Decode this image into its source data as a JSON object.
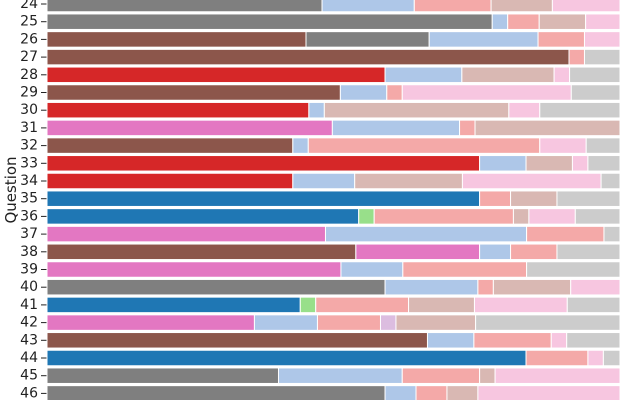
{
  "chart_data": {
    "type": "bar",
    "orientation": "horizontal",
    "stacked": true,
    "title": "",
    "xlabel": "",
    "ylabel": "Question",
    "xlim": [
      0,
      100
    ],
    "grid": false,
    "legend": "none",
    "categories": [
      "24",
      "25",
      "26",
      "27",
      "28",
      "29",
      "30",
      "31",
      "32",
      "33",
      "34",
      "35",
      "36",
      "37",
      "38",
      "39",
      "40",
      "41",
      "42",
      "43",
      "44",
      "45",
      "46"
    ],
    "rows": [
      {
        "q": "24",
        "segments": [
          {
            "color": "#7f7f7f",
            "value": 48.0
          },
          {
            "color": "#aec7e8",
            "value": 16.1
          },
          {
            "color": "#f4a9a8",
            "value": 13.4
          },
          {
            "color": "#d9b8b3",
            "value": 10.7
          },
          {
            "color": "#f7c6e0",
            "value": 11.8
          }
        ]
      },
      {
        "q": "25",
        "segments": [
          {
            "color": "#7f7f7f",
            "value": 77.7
          },
          {
            "color": "#aec7e8",
            "value": 2.7
          },
          {
            "color": "#f4a9a8",
            "value": 5.5
          },
          {
            "color": "#d9b8b3",
            "value": 8.1
          },
          {
            "color": "#f7c6e0",
            "value": 6.0
          }
        ]
      },
      {
        "q": "26",
        "segments": [
          {
            "color": "#8c564b",
            "value": 45.2
          },
          {
            "color": "#7f7f7f",
            "value": 21.5
          },
          {
            "color": "#aec7e8",
            "value": 19.0
          },
          {
            "color": "#f4a9a8",
            "value": 8.1
          },
          {
            "color": "#f7c6e0",
            "value": 6.2
          }
        ]
      },
      {
        "q": "27",
        "segments": [
          {
            "color": "#8c564b",
            "value": 91.1
          },
          {
            "color": "#f4a9a8",
            "value": 2.7
          },
          {
            "color": "#cccccc",
            "value": 6.2
          }
        ]
      },
      {
        "q": "28",
        "segments": [
          {
            "color": "#d62728",
            "value": 59.0
          },
          {
            "color": "#aec7e8",
            "value": 13.4
          },
          {
            "color": "#d9b8b3",
            "value": 16.1
          },
          {
            "color": "#f7c6e0",
            "value": 2.7
          },
          {
            "color": "#cccccc",
            "value": 8.8
          }
        ]
      },
      {
        "q": "29",
        "segments": [
          {
            "color": "#8c564b",
            "value": 51.2
          },
          {
            "color": "#aec7e8",
            "value": 8.1
          },
          {
            "color": "#f4a9a8",
            "value": 2.7
          },
          {
            "color": "#f7c6e0",
            "value": 29.5
          },
          {
            "color": "#cccccc",
            "value": 8.5
          }
        ]
      },
      {
        "q": "30",
        "segments": [
          {
            "color": "#d62728",
            "value": 45.7
          },
          {
            "color": "#aec7e8",
            "value": 2.7
          },
          {
            "color": "#d9b8b3",
            "value": 32.2
          },
          {
            "color": "#f7c6e0",
            "value": 5.4
          },
          {
            "color": "#cccccc",
            "value": 14.0
          }
        ]
      },
      {
        "q": "31",
        "segments": [
          {
            "color": "#e377c2",
            "value": 49.8
          },
          {
            "color": "#aec7e8",
            "value": 22.2
          },
          {
            "color": "#f4a9a8",
            "value": 2.7
          },
          {
            "color": "#d9b8b3",
            "value": 25.3
          }
        ]
      },
      {
        "q": "32",
        "segments": [
          {
            "color": "#8c564b",
            "value": 42.9
          },
          {
            "color": "#aec7e8",
            "value": 2.7
          },
          {
            "color": "#f4a9a8",
            "value": 40.4
          },
          {
            "color": "#f7c6e0",
            "value": 8.1
          },
          {
            "color": "#cccccc",
            "value": 5.9
          }
        ]
      },
      {
        "q": "33",
        "segments": [
          {
            "color": "#d62728",
            "value": 75.5
          },
          {
            "color": "#aec7e8",
            "value": 8.1
          },
          {
            "color": "#d9b8b3",
            "value": 8.1
          },
          {
            "color": "#f7c6e0",
            "value": 2.7
          },
          {
            "color": "#cccccc",
            "value": 5.6
          }
        ]
      },
      {
        "q": "34",
        "segments": [
          {
            "color": "#d62728",
            "value": 42.9
          },
          {
            "color": "#aec7e8",
            "value": 10.8
          },
          {
            "color": "#d9b8b3",
            "value": 18.8
          },
          {
            "color": "#f7c6e0",
            "value": 24.2
          },
          {
            "color": "#cccccc",
            "value": 3.3
          }
        ]
      },
      {
        "q": "35",
        "segments": [
          {
            "color": "#1f77b4",
            "value": 75.5
          },
          {
            "color": "#f4a9a8",
            "value": 5.4
          },
          {
            "color": "#d9b8b3",
            "value": 8.1
          },
          {
            "color": "#cccccc",
            "value": 11.0
          }
        ]
      },
      {
        "q": "36",
        "segments": [
          {
            "color": "#1f77b4",
            "value": 54.4
          },
          {
            "color": "#98df8a",
            "value": 2.7
          },
          {
            "color": "#f4a9a8",
            "value": 24.3
          },
          {
            "color": "#d9b8b3",
            "value": 2.7
          },
          {
            "color": "#f7c6e0",
            "value": 8.1
          },
          {
            "color": "#cccccc",
            "value": 7.8
          }
        ]
      },
      {
        "q": "37",
        "segments": [
          {
            "color": "#e377c2",
            "value": 48.6
          },
          {
            "color": "#aec7e8",
            "value": 35.1
          },
          {
            "color": "#f4a9a8",
            "value": 13.5
          },
          {
            "color": "#cccccc",
            "value": 2.8
          }
        ]
      },
      {
        "q": "38",
        "segments": [
          {
            "color": "#8c564b",
            "value": 53.9
          },
          {
            "color": "#e377c2",
            "value": 21.6
          },
          {
            "color": "#aec7e8",
            "value": 5.4
          },
          {
            "color": "#f4a9a8",
            "value": 8.1
          },
          {
            "color": "#cccccc",
            "value": 11.0
          }
        ]
      },
      {
        "q": "39",
        "segments": [
          {
            "color": "#e377c2",
            "value": 51.3
          },
          {
            "color": "#aec7e8",
            "value": 10.8
          },
          {
            "color": "#f4a9a8",
            "value": 21.6
          },
          {
            "color": "#cccccc",
            "value": 16.3
          }
        ]
      },
      {
        "q": "40",
        "segments": [
          {
            "color": "#7f7f7f",
            "value": 59.0
          },
          {
            "color": "#aec7e8",
            "value": 16.2
          },
          {
            "color": "#f4a9a8",
            "value": 2.7
          },
          {
            "color": "#d9b8b3",
            "value": 13.5
          },
          {
            "color": "#f7c6e0",
            "value": 8.6
          }
        ]
      },
      {
        "q": "41",
        "segments": [
          {
            "color": "#1f77b4",
            "value": 44.2
          },
          {
            "color": "#98df8a",
            "value": 2.7
          },
          {
            "color": "#f4a9a8",
            "value": 16.2
          },
          {
            "color": "#d9b8b3",
            "value": 11.5
          },
          {
            "color": "#f7c6e0",
            "value": 16.2
          },
          {
            "color": "#cccccc",
            "value": 9.2
          }
        ]
      },
      {
        "q": "42",
        "segments": [
          {
            "color": "#e377c2",
            "value": 36.2
          },
          {
            "color": "#aec7e8",
            "value": 11.0
          },
          {
            "color": "#f4a9a8",
            "value": 11.0
          },
          {
            "color": "#dcbde0",
            "value": 2.7
          },
          {
            "color": "#d9b8b3",
            "value": 13.9
          },
          {
            "color": "#cccccc",
            "value": 25.2
          }
        ]
      },
      {
        "q": "43",
        "segments": [
          {
            "color": "#8c564b",
            "value": 66.4
          },
          {
            "color": "#aec7e8",
            "value": 8.1
          },
          {
            "color": "#f4a9a8",
            "value": 13.5
          },
          {
            "color": "#f7c6e0",
            "value": 2.7
          },
          {
            "color": "#cccccc",
            "value": 9.3
          }
        ]
      },
      {
        "q": "44",
        "segments": [
          {
            "color": "#1f77b4",
            "value": 83.6
          },
          {
            "color": "#f4a9a8",
            "value": 10.8
          },
          {
            "color": "#f7c6e0",
            "value": 2.7
          },
          {
            "color": "#cccccc",
            "value": 2.9
          }
        ]
      },
      {
        "q": "45",
        "segments": [
          {
            "color": "#7f7f7f",
            "value": 40.4
          },
          {
            "color": "#aec7e8",
            "value": 21.6
          },
          {
            "color": "#f4a9a8",
            "value": 13.5
          },
          {
            "color": "#d9b8b3",
            "value": 2.7
          },
          {
            "color": "#f7c6e0",
            "value": 21.8
          }
        ]
      },
      {
        "q": "46",
        "segments": [
          {
            "color": "#7f7f7f",
            "value": 59.0
          },
          {
            "color": "#aec7e8",
            "value": 5.4
          },
          {
            "color": "#f4a9a8",
            "value": 5.4
          },
          {
            "color": "#d9b8b3",
            "value": 5.4
          },
          {
            "color": "#f7c6e0",
            "value": 24.8
          }
        ]
      }
    ]
  }
}
